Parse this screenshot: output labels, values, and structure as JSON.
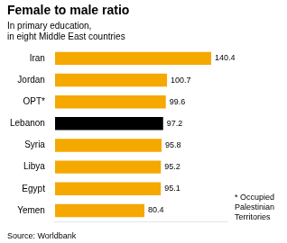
{
  "chart_data": {
    "type": "bar",
    "orientation": "horizontal",
    "title": "Female to male ratio",
    "subtitle": "In primary education,\nin eight Middle East countries",
    "categories": [
      "Iran",
      "Jordan",
      "OPT*",
      "Lebanon",
      "Syria",
      "Libya",
      "Egypt",
      "Yemen"
    ],
    "values": [
      140.4,
      100.7,
      99.6,
      97.2,
      95.8,
      95.2,
      95.1,
      80.4
    ],
    "colors": [
      "#F5A800",
      "#F5A800",
      "#F5A800",
      "#000000",
      "#F5A800",
      "#F5A800",
      "#F5A800",
      "#F5A800"
    ],
    "xlim": [
      0,
      155
    ],
    "grid": false,
    "tick_labels": "y",
    "data_labels": true,
    "footnote": "* Occupied\nPalestinian\nTerritories",
    "source": "Source: Worldbank"
  }
}
